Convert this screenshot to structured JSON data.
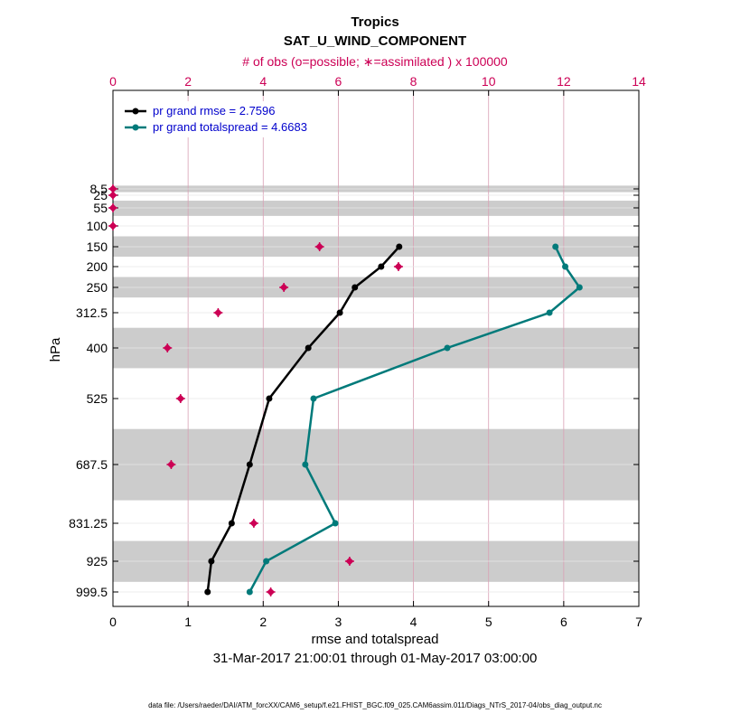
{
  "chart_data": {
    "type": "line",
    "title": "Tropics",
    "subtitle": "SAT_U_WIND_COMPONENT",
    "top_axis_label": "# of obs (o=possible; ∗=assimilated ) x 100000",
    "xlabel": "rmse and totalspread",
    "ylabel": "hPa",
    "date_range": "31-Mar-2017 21:00:01 through 01-May-2017 03:00:00",
    "footnote": "data file: /Users/raeder/DAI/ATM_forcXX/CAM6_setup/f.e21.FHIST_BGC.f09_025.CAM6assim.011/Diags_NTrS_2017-04/obs_diag_output.nc",
    "xlim": [
      0,
      7
    ],
    "x_ticks": [
      "0",
      "1",
      "2",
      "3",
      "4",
      "5",
      "6",
      "7"
    ],
    "top_xlim": [
      0,
      14
    ],
    "top_ticks": [
      "0",
      "2",
      "4",
      "6",
      "8",
      "10",
      "12",
      "14"
    ],
    "levels": [
      8.5,
      25,
      55,
      100,
      150,
      200,
      250,
      312.5,
      400,
      525,
      687.5,
      831.25,
      925,
      999.5
    ],
    "level_labels": [
      "8.5",
      "25",
      "55",
      "100",
      "150",
      "200",
      "250",
      "312.5",
      "400",
      "525",
      "687.5",
      "831.25",
      "925",
      "999.5"
    ],
    "shaded_bands": [
      [
        0.0,
        17.0
      ],
      [
        38.0,
        75.0
      ],
      [
        125.0,
        175.0
      ],
      [
        225.0,
        275.0
      ],
      [
        350.0,
        450.0
      ],
      [
        600.0,
        775.0
      ],
      [
        875.0,
        975.0
      ]
    ],
    "legend_position": "top-left",
    "series": [
      {
        "name": "rmse",
        "legend": "pr grand rmse = 2.7596",
        "color": "#000000",
        "levels": [
          150,
          200,
          250,
          312.5,
          400,
          525,
          687.5,
          831.25,
          925,
          999.5
        ],
        "values": [
          3.81,
          3.57,
          3.22,
          3.02,
          2.6,
          2.08,
          1.82,
          1.58,
          1.31,
          1.26
        ]
      },
      {
        "name": "totalspread",
        "legend": "pr grand totalspread = 4.6683",
        "color": "#007a7a",
        "levels": [
          150,
          200,
          250,
          312.5,
          400,
          525,
          687.5,
          831.25,
          925,
          999.5
        ],
        "values": [
          5.89,
          6.02,
          6.21,
          5.81,
          4.45,
          2.67,
          2.56,
          2.96,
          2.04,
          1.82
        ]
      }
    ],
    "obs_assimilated": {
      "color": "#cc0055",
      "levels": [
        8.5,
        25,
        55,
        100,
        150,
        200,
        250,
        312.5,
        400,
        525,
        687.5,
        831.25,
        925,
        999.5
      ],
      "values": [
        0.0,
        0.0,
        0.0,
        0.0,
        5.5,
        7.6,
        4.55,
        2.8,
        1.45,
        1.8,
        1.55,
        3.75,
        6.3,
        4.2
      ]
    }
  }
}
